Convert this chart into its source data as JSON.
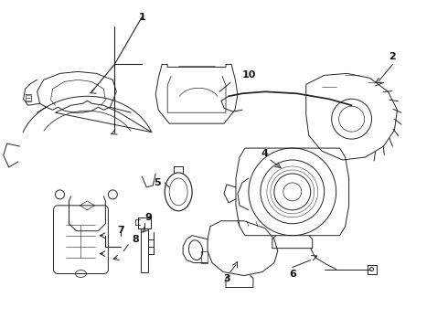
{
  "background_color": "#ffffff",
  "line_color": "#222222",
  "text_color": "#111111",
  "fig_width": 4.9,
  "fig_height": 3.6,
  "dpi": 100
}
